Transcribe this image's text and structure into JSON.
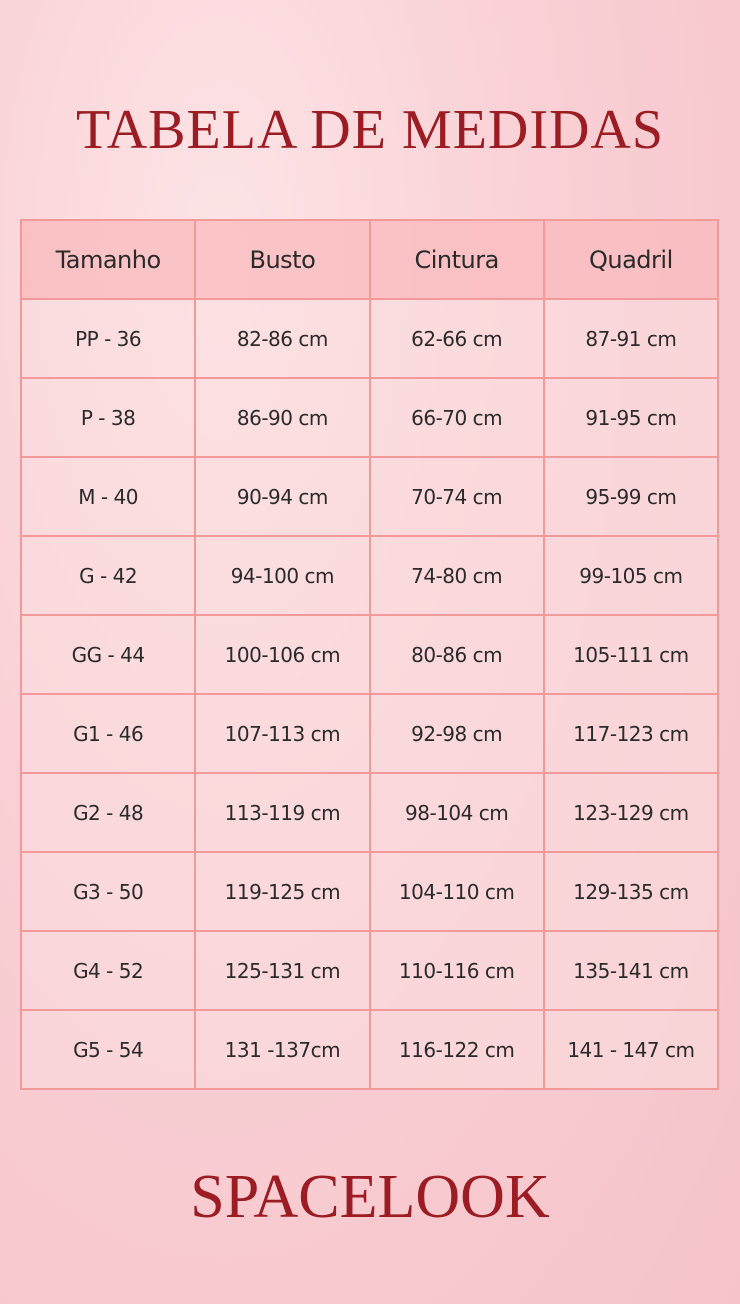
{
  "title": "TABELA DE MEDIDAS",
  "table": {
    "headers": [
      "Tamanho",
      "Busto",
      "Cintura",
      "Quadril"
    ],
    "rows": [
      [
        "PP - 36",
        "82-86 cm",
        "62-66 cm",
        "87-91 cm"
      ],
      [
        "P - 38",
        "86-90 cm",
        "66-70 cm",
        "91-95 cm"
      ],
      [
        "M - 40",
        "90-94  cm",
        "70-74 cm",
        "95-99 cm"
      ],
      [
        "G - 42",
        "94-100 cm",
        "74-80 cm",
        "99-105 cm"
      ],
      [
        "GG - 44",
        "100-106 cm",
        "80-86  cm",
        "105-111 cm"
      ],
      [
        "G1 - 46",
        "107-113 cm",
        "92-98 cm",
        "117-123 cm"
      ],
      [
        "G2 - 48",
        "113-119 cm",
        "98-104 cm",
        "123-129 cm"
      ],
      [
        "G3 - 50",
        "119-125 cm",
        "104-110 cm",
        "129-135 cm"
      ],
      [
        "G4 - 52",
        "125-131 cm",
        "110-116 cm",
        "135-141 cm"
      ],
      [
        "G5 - 54",
        "131 -137cm",
        "116-122 cm",
        "141 - 147 cm"
      ]
    ]
  },
  "brand": "SPACELOOK",
  "colors": {
    "title": "#9b1c22",
    "border": "#f29a9a",
    "header_bg": "#f9b9bc"
  }
}
